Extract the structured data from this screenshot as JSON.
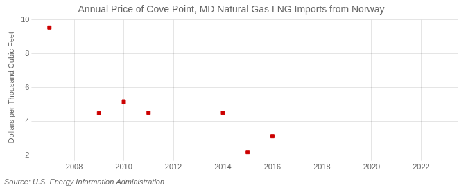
{
  "chart_data": {
    "type": "scatter",
    "title": "Annual Price of Cove Point, MD Natural Gas LNG Imports from Norway",
    "ylabel": "Dollars per Thousand Cubic Feet",
    "source": "Source: U.S. Energy Information Administration",
    "x": [
      2007,
      2009,
      2010,
      2011,
      2014,
      2015,
      2016
    ],
    "values": [
      9.55,
      4.48,
      5.15,
      4.51,
      4.51,
      2.18,
      3.12
    ],
    "color": "#cc0000",
    "marker": "square",
    "xlim": [
      2006.5,
      2023.5
    ],
    "xticks": [
      2008,
      2010,
      2012,
      2014,
      2016,
      2018,
      2020,
      2022
    ],
    "ylim": [
      2,
      10
    ],
    "yticks": [
      2,
      4,
      6,
      8,
      10
    ],
    "grid": true
  }
}
